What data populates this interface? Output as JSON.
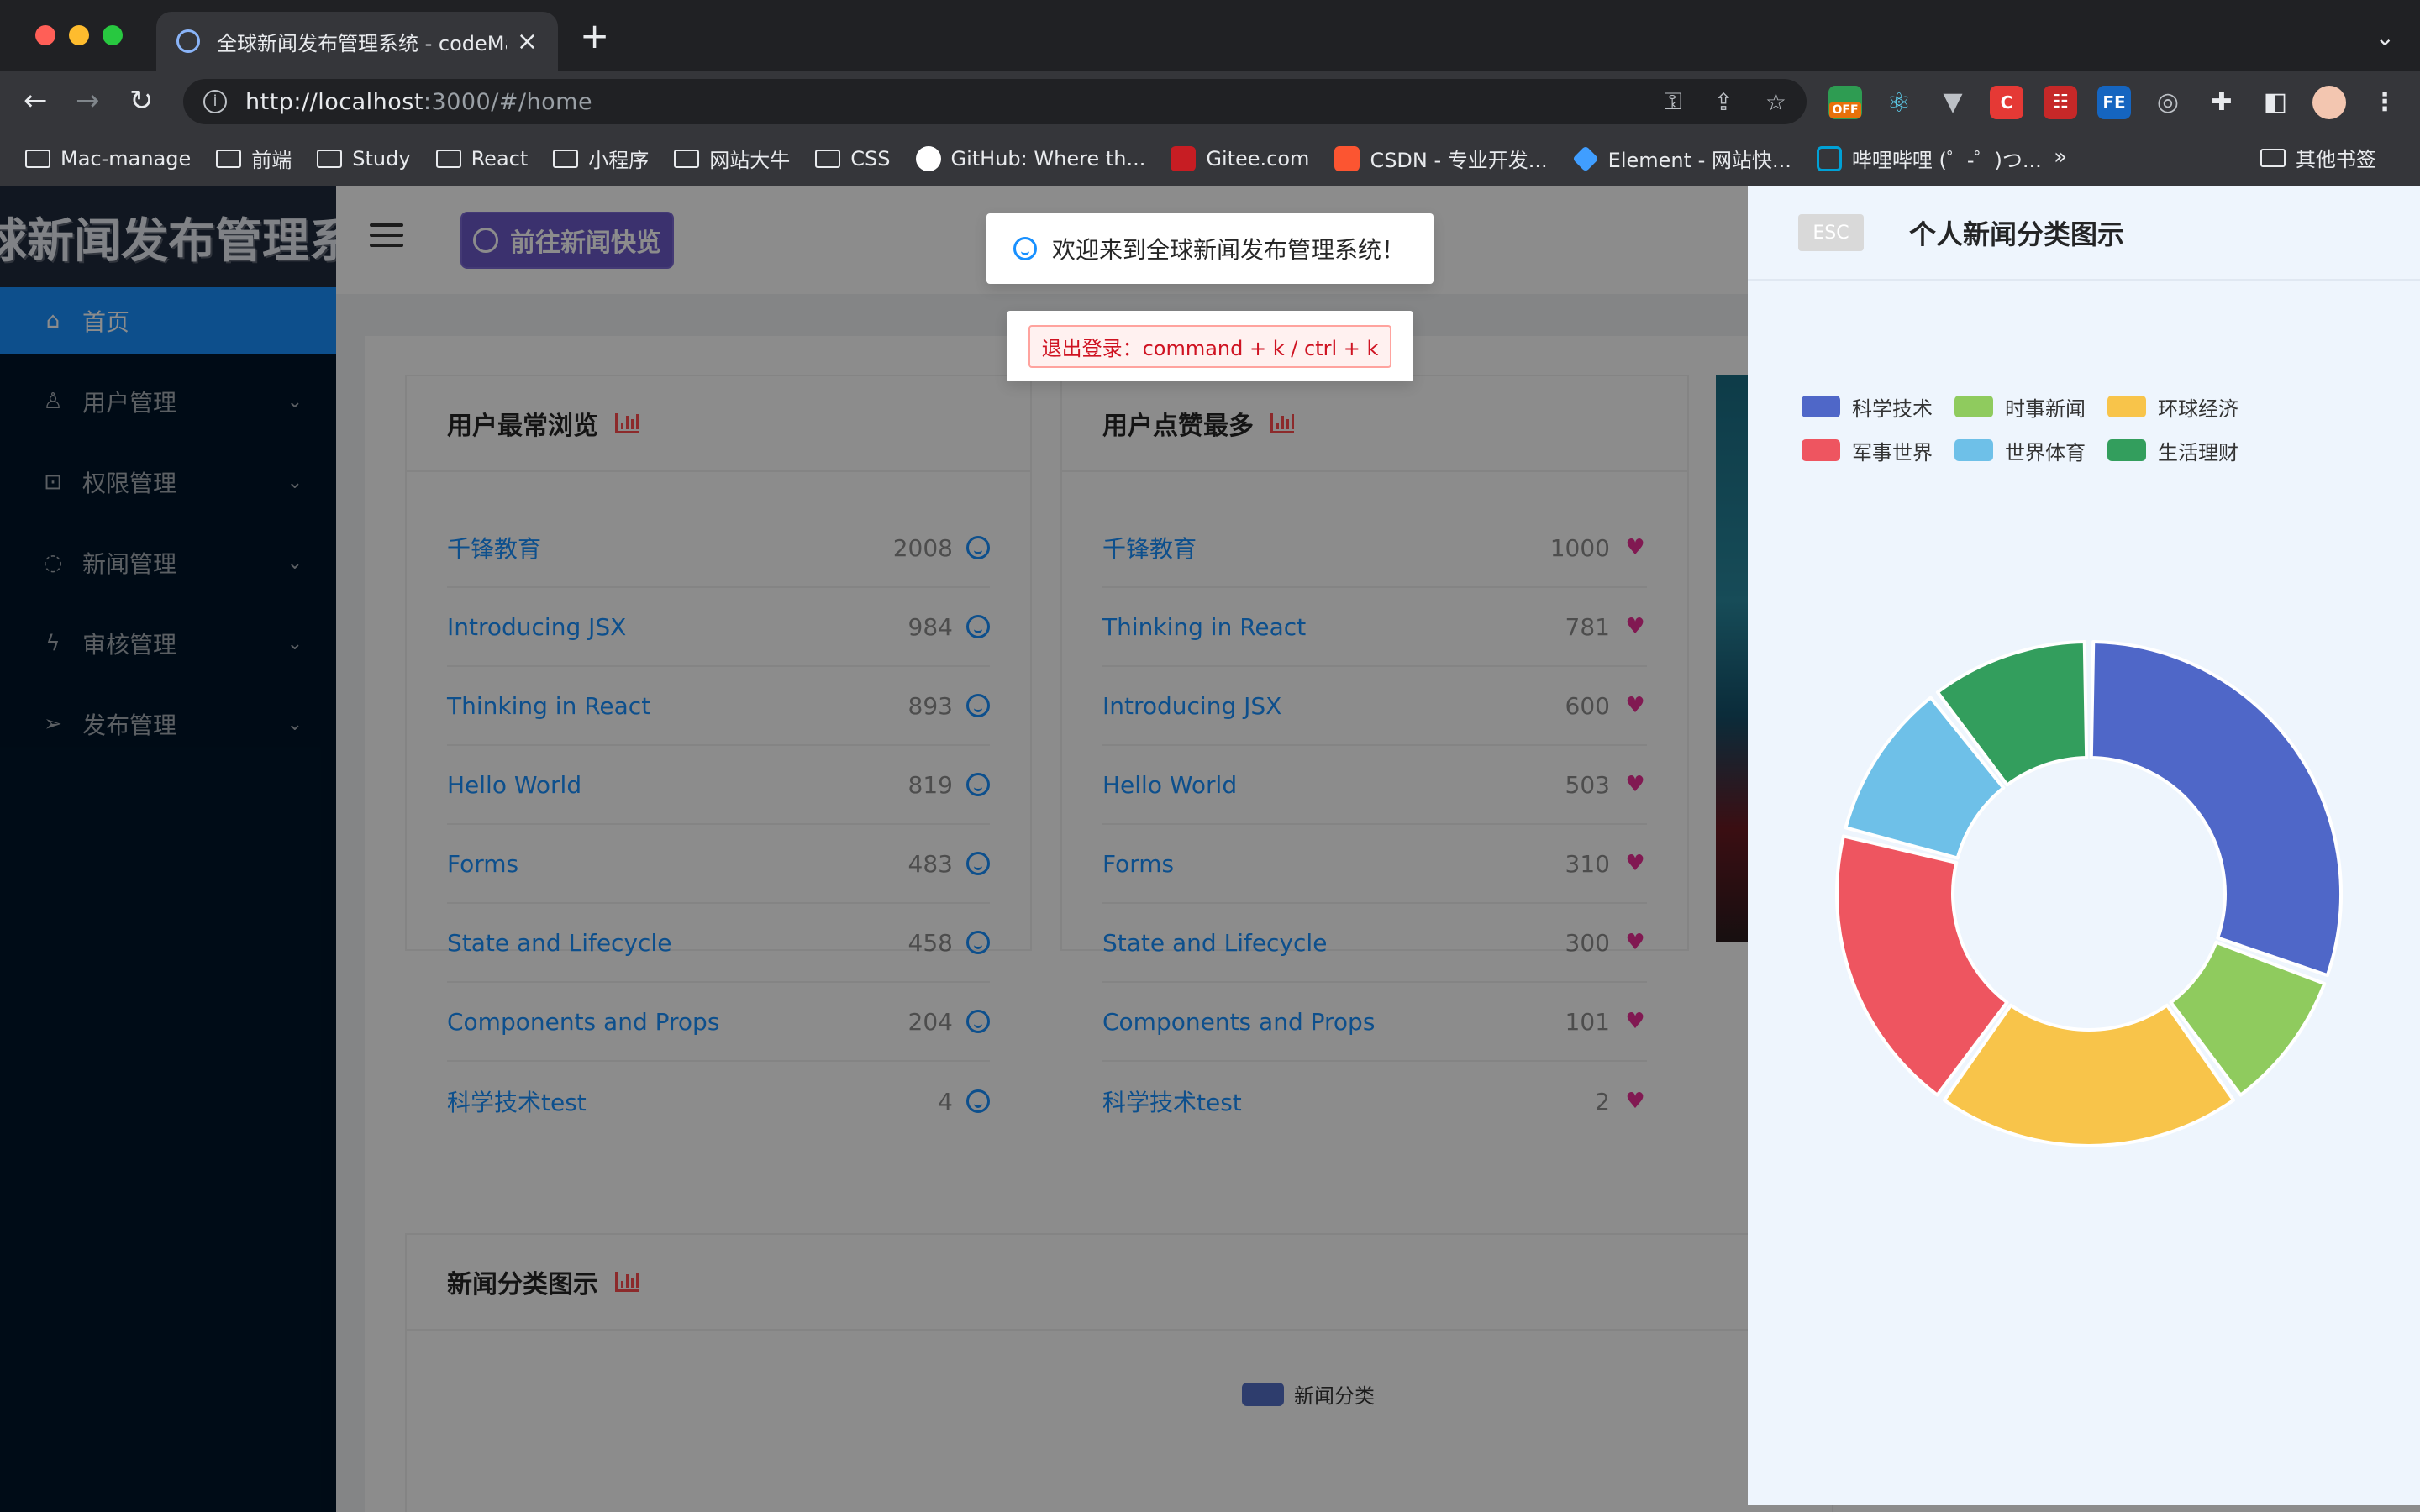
{
  "browser": {
    "tab_title": "全球新闻发布管理系统 - codeMa",
    "url_host": "http://localhost",
    "url_rest": ":3000/#/home",
    "ext_off_label": "OFF",
    "ext_fe_label": "FE",
    "ext_c_label": "C"
  },
  "bookmarks": {
    "items": [
      {
        "label": "Mac-manage",
        "icon": "folder-icon"
      },
      {
        "label": "前端",
        "icon": "folder-icon"
      },
      {
        "label": "Study",
        "icon": "folder-icon"
      },
      {
        "label": "React",
        "icon": "folder-icon"
      },
      {
        "label": "小程序",
        "icon": "folder-icon"
      },
      {
        "label": "网站大牛",
        "icon": "folder-icon"
      },
      {
        "label": "CSS",
        "icon": "folder-icon"
      },
      {
        "label": "GitHub: Where th...",
        "icon": "github-icon",
        "color": "#ffffff"
      },
      {
        "label": "Gitee.com",
        "icon": "gitee-icon",
        "color": "#c71d23"
      },
      {
        "label": "CSDN - 专业开发...",
        "icon": "csdn-icon",
        "color": "#fc5531"
      },
      {
        "label": "Element - 网站快...",
        "icon": "element-icon",
        "color": "#409eff"
      },
      {
        "label": "哔哩哔哩 (゜-゜)つ...",
        "icon": "bilibili-icon",
        "color": "#00a1d6"
      }
    ],
    "more": "»",
    "other": "其他书签"
  },
  "app": {
    "logo": "全球新闻发布管理系统",
    "menu": [
      {
        "label": "首页",
        "icon": "home-icon",
        "active": true
      },
      {
        "label": "用户管理",
        "icon": "user-icon"
      },
      {
        "label": "权限管理",
        "icon": "lock-icon"
      },
      {
        "label": "新闻管理",
        "icon": "message-icon"
      },
      {
        "label": "审核管理",
        "icon": "audit-icon"
      },
      {
        "label": "发布管理",
        "icon": "send-icon"
      }
    ],
    "news_button": "前往新闻快览"
  },
  "cards": {
    "most_viewed": {
      "title": "用户最常浏览",
      "rows": [
        {
          "title": "千锋教育",
          "count": "2008"
        },
        {
          "title": "Introducing JSX",
          "count": "984"
        },
        {
          "title": "Thinking in React",
          "count": "893"
        },
        {
          "title": "Hello World",
          "count": "819"
        },
        {
          "title": "Forms",
          "count": "483"
        },
        {
          "title": "State and Lifecycle",
          "count": "458"
        },
        {
          "title": "Components and Props",
          "count": "204"
        },
        {
          "title": "科学技术test",
          "count": "4"
        }
      ]
    },
    "most_liked": {
      "title": "用户点赞最多",
      "rows": [
        {
          "title": "千锋教育",
          "count": "1000"
        },
        {
          "title": "Thinking in React",
          "count": "781"
        },
        {
          "title": "Introducing JSX",
          "count": "600"
        },
        {
          "title": "Hello World",
          "count": "503"
        },
        {
          "title": "Forms",
          "count": "310"
        },
        {
          "title": "State and Lifecycle",
          "count": "300"
        },
        {
          "title": "Components and Props",
          "count": "101"
        },
        {
          "title": "科学技术test",
          "count": "2"
        }
      ]
    },
    "category_chart": {
      "title": "新闻分类图示",
      "legend": "新闻分类"
    }
  },
  "messages": {
    "welcome": "欢迎来到全球新闻发布管理系统！",
    "logout_tip": "退出登录：command + k / ctrl + k"
  },
  "drawer": {
    "esc": "ESC",
    "title": "个人新闻分类图示"
  },
  "chart_data": {
    "type": "pie",
    "title": "",
    "categories": [
      "科学技术",
      "时事新闻",
      "环球经济",
      "军事世界",
      "世界体育",
      "生活理财"
    ],
    "values": [
      29,
      9,
      19,
      18,
      10,
      10
    ],
    "colors": [
      "#4f67c8",
      "#8fcb5e",
      "#f8c44a",
      "#ee5560",
      "#6ec0e8",
      "#339e5d"
    ],
    "donut": true,
    "legend_position": "top"
  }
}
